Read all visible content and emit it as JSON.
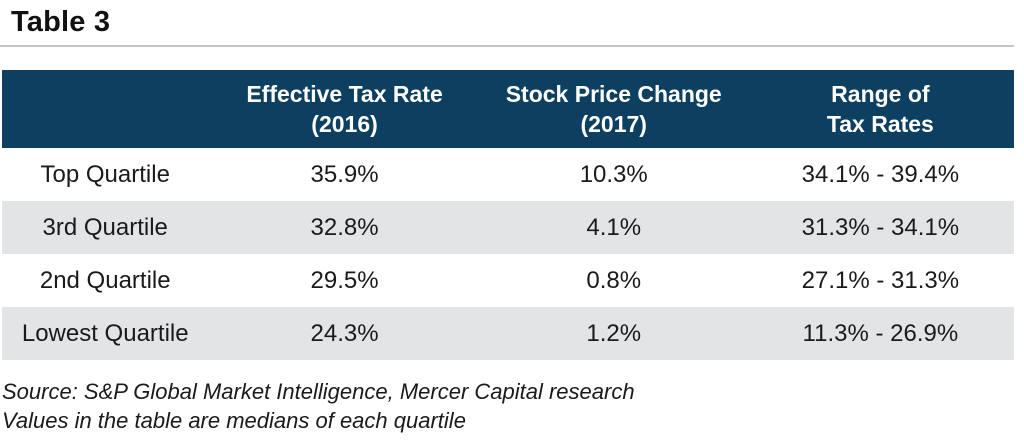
{
  "title": "Table 3",
  "table": {
    "headers": [
      {
        "line1": "",
        "line2": ""
      },
      {
        "line1": "Effective Tax Rate",
        "line2": "(2016)"
      },
      {
        "line1": "Stock Price Change",
        "line2": "(2017)"
      },
      {
        "line1": "Range of",
        "line2": "Tax Rates"
      }
    ],
    "rows": [
      {
        "label": "Top Quartile",
        "effective_tax_rate": "35.9%",
        "stock_price_change": "10.3%",
        "tax_rate_range": "34.1% - 39.4%"
      },
      {
        "label": "3rd Quartile",
        "effective_tax_rate": "32.8%",
        "stock_price_change": "4.1%",
        "tax_rate_range": "31.3% - 34.1%"
      },
      {
        "label": "2nd Quartile",
        "effective_tax_rate": "29.5%",
        "stock_price_change": "0.8%",
        "tax_rate_range": "27.1% - 31.3%"
      },
      {
        "label": "Lowest Quartile",
        "effective_tax_rate": "24.3%",
        "stock_price_change": "1.2%",
        "tax_rate_range": "11.3% - 26.9%"
      }
    ]
  },
  "footnotes": [
    "Source: S&P Global Market Intelligence, Mercer Capital research",
    "Values in the table are medians of each quartile"
  ],
  "colors": {
    "header_bg": "#0d4060",
    "header_text": "#ffffff",
    "alt_row_bg": "#e3e4e6",
    "rule": "#c4c4c4",
    "body_text": "#1a1a1a"
  },
  "chart_data": {
    "type": "table",
    "title": "Table 3",
    "columns": [
      "",
      "Effective Tax Rate (2016)",
      "Stock Price Change (2017)",
      "Range of Tax Rates"
    ],
    "rows": [
      [
        "Top Quartile",
        "35.9%",
        "10.3%",
        "34.1% - 39.4%"
      ],
      [
        "3rd Quartile",
        "32.8%",
        "4.1%",
        "31.3% - 34.1%"
      ],
      [
        "2nd Quartile",
        "29.5%",
        "0.8%",
        "27.1% - 31.3%"
      ],
      [
        "Lowest Quartile",
        "24.3%",
        "1.2%",
        "11.3% - 26.9%"
      ]
    ],
    "notes": [
      "Source: S&P Global Market Intelligence, Mercer Capital research",
      "Values in the table are medians of each quartile"
    ]
  }
}
